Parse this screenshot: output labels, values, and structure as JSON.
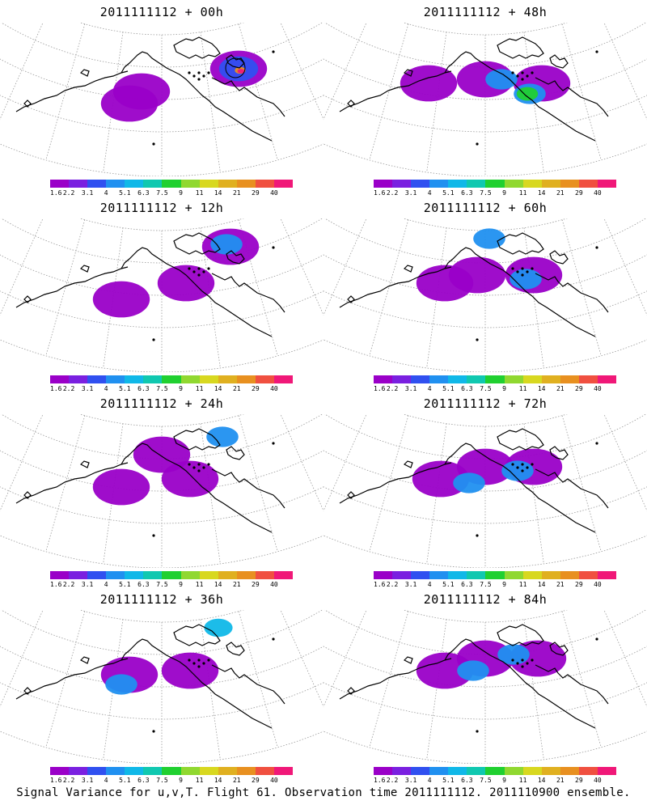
{
  "panels": [
    {
      "title": "2011111112 + 00h",
      "lead": 0
    },
    {
      "title": "2011111112 + 48h",
      "lead": 48
    },
    {
      "title": "2011111112 + 12h",
      "lead": 12
    },
    {
      "title": "2011111112 + 60h",
      "lead": 60
    },
    {
      "title": "2011111112 + 24h",
      "lead": 24
    },
    {
      "title": "2011111112 + 72h",
      "lead": 72
    },
    {
      "title": "2011111112 + 36h",
      "lead": 36
    },
    {
      "title": "2011111112 + 84h",
      "lead": 84
    }
  ],
  "colorbar": {
    "labels": [
      "1.6",
      "2.2",
      "3.1",
      "4",
      "5.1",
      "6.3",
      "7.5",
      "9",
      "11",
      "14",
      "21",
      "29",
      "40"
    ],
    "colors": [
      "#9a00c8",
      "#7a20e0",
      "#3050f0",
      "#2090f0",
      "#10b8e8",
      "#10c8b0",
      "#20d030",
      "#90d830",
      "#d8d820",
      "#e0b020",
      "#e89020",
      "#f05040",
      "#f01878"
    ]
  },
  "footer": "Signal Variance for u,v,T. Flight 61. Observation time 2011111112. 2011110900 ensemble.",
  "map": {
    "projection": "polar-stereographic",
    "coastline_color": "#000000",
    "grid_color": "#999999"
  },
  "blobs": [
    [
      {
        "level": 0,
        "cx": 175,
        "cy": 85
      },
      {
        "level": 0,
        "cx": 160,
        "cy": 100
      },
      {
        "level": 0,
        "cx": 295,
        "cy": 57
      },
      {
        "level": 2,
        "cx": 295,
        "cy": 57
      },
      {
        "level": 10,
        "cx": 297,
        "cy": 59
      },
      {
        "level": 12,
        "cx": 298,
        "cy": 60
      }
    ],
    [
      {
        "level": 0,
        "cx": 200,
        "cy": 70
      },
      {
        "level": 0,
        "cx": 130,
        "cy": 75
      },
      {
        "level": 0,
        "cx": 270,
        "cy": 75
      },
      {
        "level": 3,
        "cx": 220,
        "cy": 70
      },
      {
        "level": 3,
        "cx": 255,
        "cy": 88
      },
      {
        "level": 6,
        "cx": 252,
        "cy": 88
      }
    ],
    [
      {
        "level": 0,
        "cx": 150,
        "cy": 100
      },
      {
        "level": 0,
        "cx": 230,
        "cy": 80
      },
      {
        "level": 0,
        "cx": 285,
        "cy": 35
      },
      {
        "level": 3,
        "cx": 280,
        "cy": 32
      }
    ],
    [
      {
        "level": 0,
        "cx": 190,
        "cy": 70
      },
      {
        "level": 0,
        "cx": 150,
        "cy": 80
      },
      {
        "level": 0,
        "cx": 260,
        "cy": 70
      },
      {
        "level": 3,
        "cx": 205,
        "cy": 25
      },
      {
        "level": 3,
        "cx": 250,
        "cy": 75
      }
    ],
    [
      {
        "level": 0,
        "cx": 150,
        "cy": 90
      },
      {
        "level": 0,
        "cx": 235,
        "cy": 80
      },
      {
        "level": 0,
        "cx": 200,
        "cy": 50
      },
      {
        "level": 3,
        "cx": 275,
        "cy": 28
      }
    ],
    [
      {
        "level": 0,
        "cx": 200,
        "cy": 65
      },
      {
        "level": 0,
        "cx": 145,
        "cy": 80
      },
      {
        "level": 0,
        "cx": 260,
        "cy": 65
      },
      {
        "level": 3,
        "cx": 180,
        "cy": 85
      },
      {
        "level": 3,
        "cx": 240,
        "cy": 70
      }
    ],
    [
      {
        "level": 0,
        "cx": 160,
        "cy": 80
      },
      {
        "level": 0,
        "cx": 235,
        "cy": 75
      },
      {
        "level": 3,
        "cx": 150,
        "cy": 92
      },
      {
        "level": 4,
        "cx": 270,
        "cy": 22
      }
    ],
    [
      {
        "level": 0,
        "cx": 200,
        "cy": 60
      },
      {
        "level": 0,
        "cx": 150,
        "cy": 75
      },
      {
        "level": 0,
        "cx": 265,
        "cy": 60
      },
      {
        "level": 3,
        "cx": 185,
        "cy": 75
      },
      {
        "level": 3,
        "cx": 235,
        "cy": 55
      }
    ]
  ]
}
